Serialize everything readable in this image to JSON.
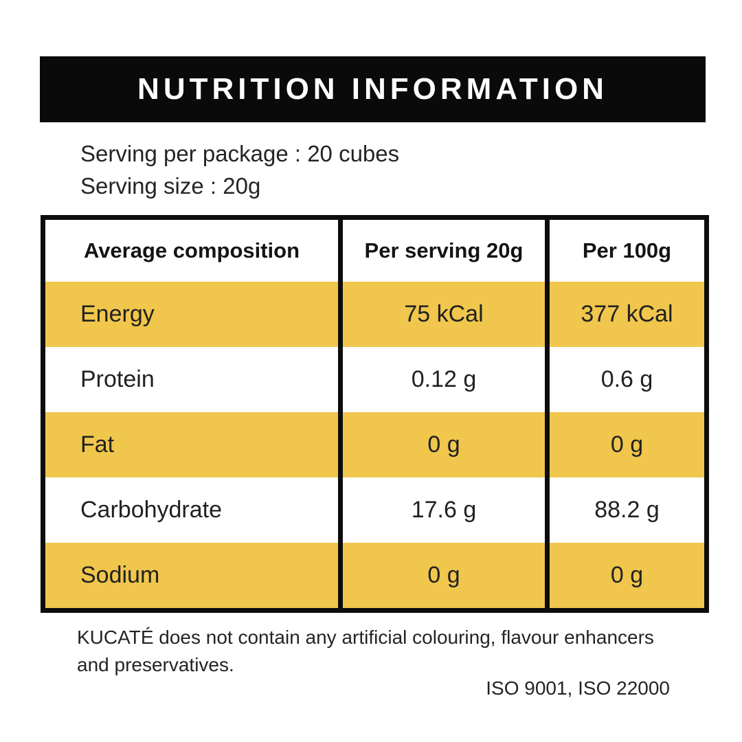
{
  "colors": {
    "accent_yellow": "#F0C64C",
    "bar_black": "#0A0A0A",
    "border_black": "#0D0D0D",
    "text": "#242424",
    "background": "#FFFFFF"
  },
  "header": {
    "title": "NUTRITION INFORMATION"
  },
  "serving_info": {
    "line1": "Serving per package : 20 cubes",
    "line2": "Serving size : 20g"
  },
  "table": {
    "columns": [
      "Average composition",
      "Per serving 20g",
      "Per 100g"
    ],
    "rows": [
      {
        "label": "Energy",
        "per_serving": "75 kCal",
        "per_100g": "377 kCal",
        "highlighted": true
      },
      {
        "label": "Protein",
        "per_serving": "0.12 g",
        "per_100g": "0.6 g",
        "highlighted": false
      },
      {
        "label": "Fat",
        "per_serving": "0 g",
        "per_100g": "0 g",
        "highlighted": true
      },
      {
        "label": "Carbohydrate",
        "per_serving": "17.6 g",
        "per_100g": "88.2 g",
        "highlighted": false
      },
      {
        "label": "Sodium",
        "per_serving": "0 g",
        "per_100g": "0 g",
        "highlighted": true
      }
    ]
  },
  "footer": {
    "disclaimer": "KUCATÉ does not contain any artificial colouring, flavour enhancers and preservatives.",
    "certifications": "ISO 9001, ISO 22000"
  }
}
